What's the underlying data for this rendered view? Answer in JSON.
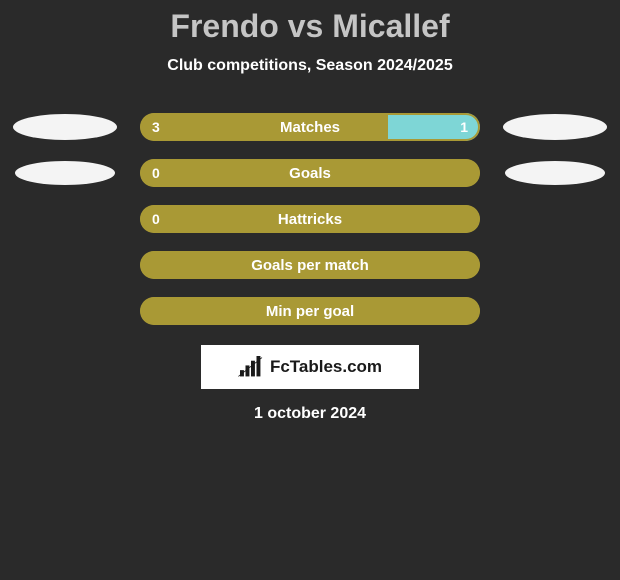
{
  "title": "Frendo vs Micallef",
  "subtitle": "Club competitions, Season 2024/2025",
  "colors": {
    "bg": "#2a2a2a",
    "left_fill": "#a99935",
    "right_fill": "#7ed6d6",
    "border": "#a99935",
    "ellipse": "#f4f4f4",
    "text": "#ffffff",
    "title_color": "#c5c5c5",
    "brand_bg": "#ffffff",
    "brand_text": "#1a1a1a"
  },
  "rows": [
    {
      "label": "Matches",
      "left_val": "3",
      "right_val": "1",
      "left_pct": 73,
      "right_pct": 27,
      "show_left_ellipse": true,
      "show_right_ellipse": true,
      "ellipse_small": false
    },
    {
      "label": "Goals",
      "left_val": "0",
      "right_val": "",
      "left_pct": 100,
      "right_pct": 0,
      "show_left_ellipse": true,
      "show_right_ellipse": true,
      "ellipse_small": true
    },
    {
      "label": "Hattricks",
      "left_val": "0",
      "right_val": "",
      "left_pct": 100,
      "right_pct": 0,
      "show_left_ellipse": false,
      "show_right_ellipse": false,
      "ellipse_small": false
    },
    {
      "label": "Goals per match",
      "left_val": "",
      "right_val": "",
      "left_pct": 100,
      "right_pct": 0,
      "show_left_ellipse": false,
      "show_right_ellipse": false,
      "ellipse_small": false
    },
    {
      "label": "Min per goal",
      "left_val": "",
      "right_val": "",
      "left_pct": 100,
      "right_pct": 0,
      "show_left_ellipse": false,
      "show_right_ellipse": false,
      "ellipse_small": false
    }
  ],
  "branding": "FcTables.com",
  "date": "1 october 2024"
}
